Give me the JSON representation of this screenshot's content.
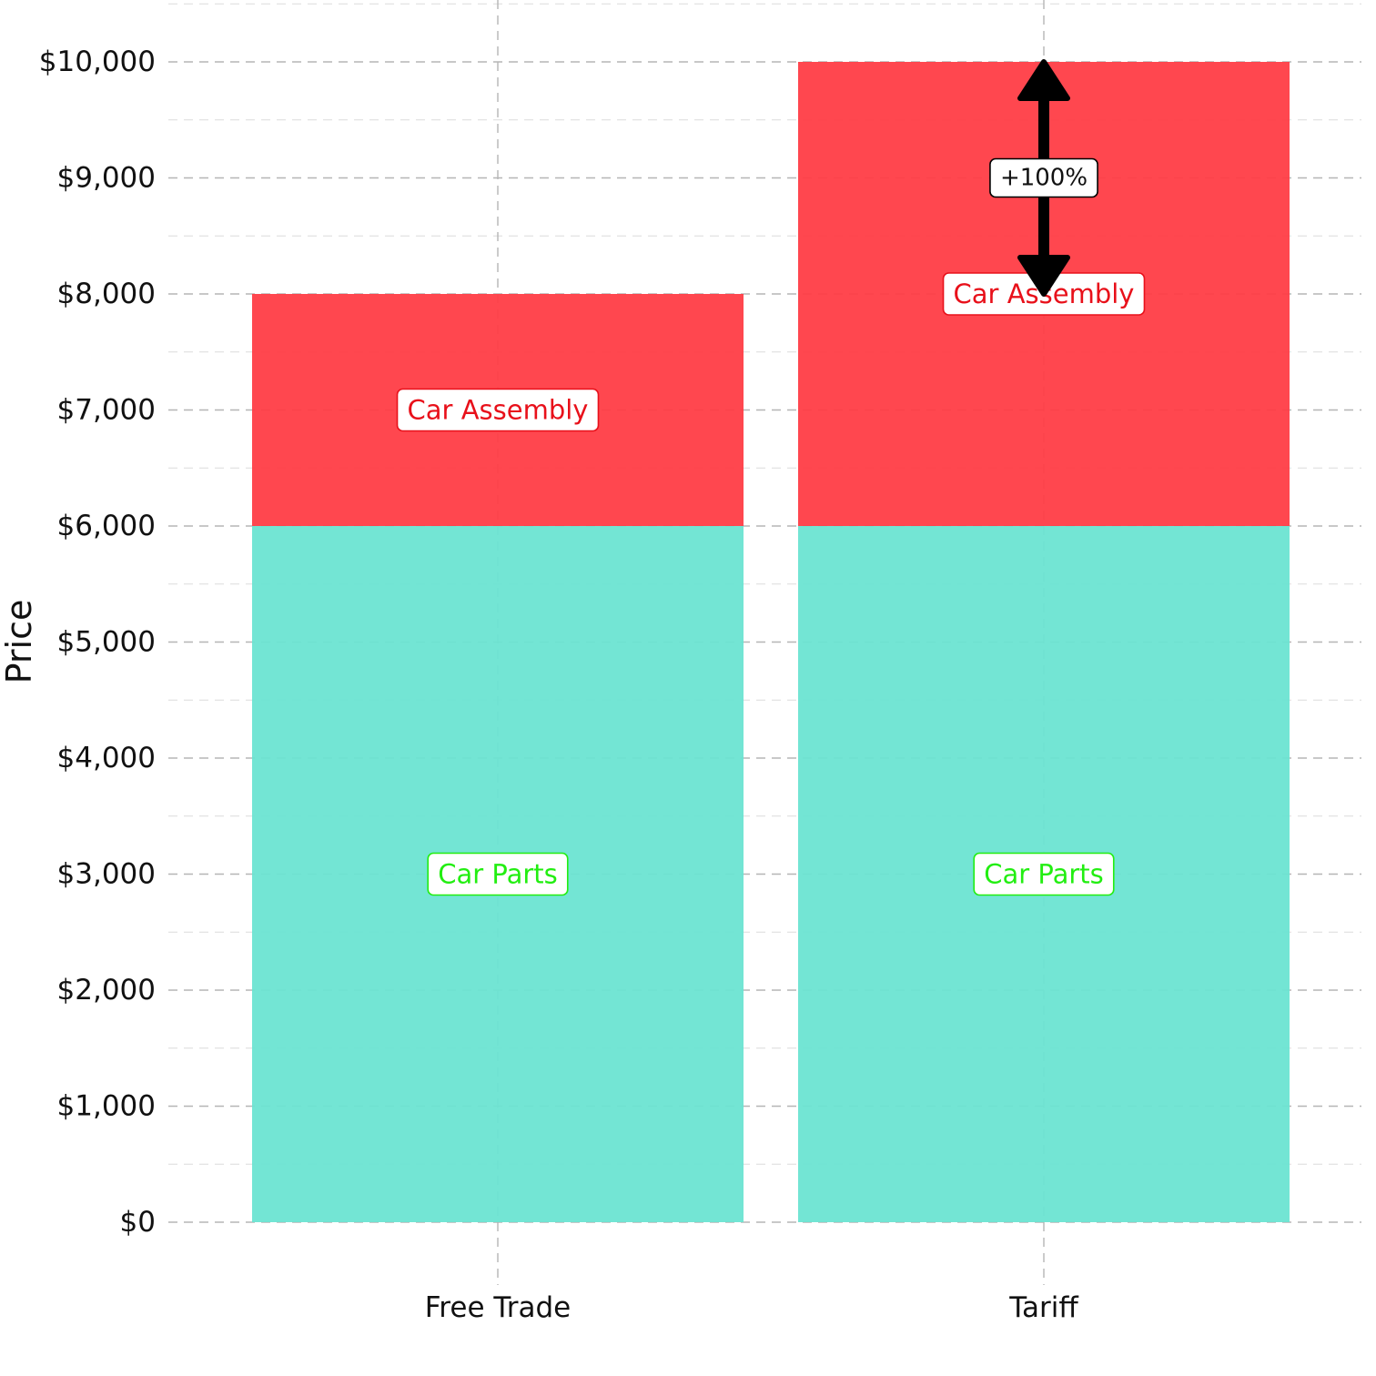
{
  "chart_data": {
    "type": "bar",
    "stacked": true,
    "categories": [
      "Free Trade",
      "Tariff"
    ],
    "series": [
      {
        "label": "Car Parts",
        "values": [
          6000,
          6000
        ],
        "color": "#6CE4D2",
        "label_color": "#22EE11"
      },
      {
        "label": "Car Assembly",
        "values": [
          2000,
          4000
        ],
        "color": "#FF3D46",
        "label_color": "#E8101A"
      }
    ],
    "ylabel": "Price",
    "xlabel": "",
    "ylim": [
      0,
      10000
    ],
    "yticks": [
      "$0",
      "$1,000",
      "$2,000",
      "$3,000",
      "$4,000",
      "$5,000",
      "$6,000",
      "$7,000",
      "$8,000",
      "$9,000",
      "$10,000"
    ],
    "grid": {
      "major": true,
      "minor": true,
      "style": "dashed"
    },
    "legend": "none",
    "annotation": {
      "category": "Tariff",
      "from": 8000,
      "to": 10000,
      "label": "+100%",
      "label_at": 9000
    }
  }
}
